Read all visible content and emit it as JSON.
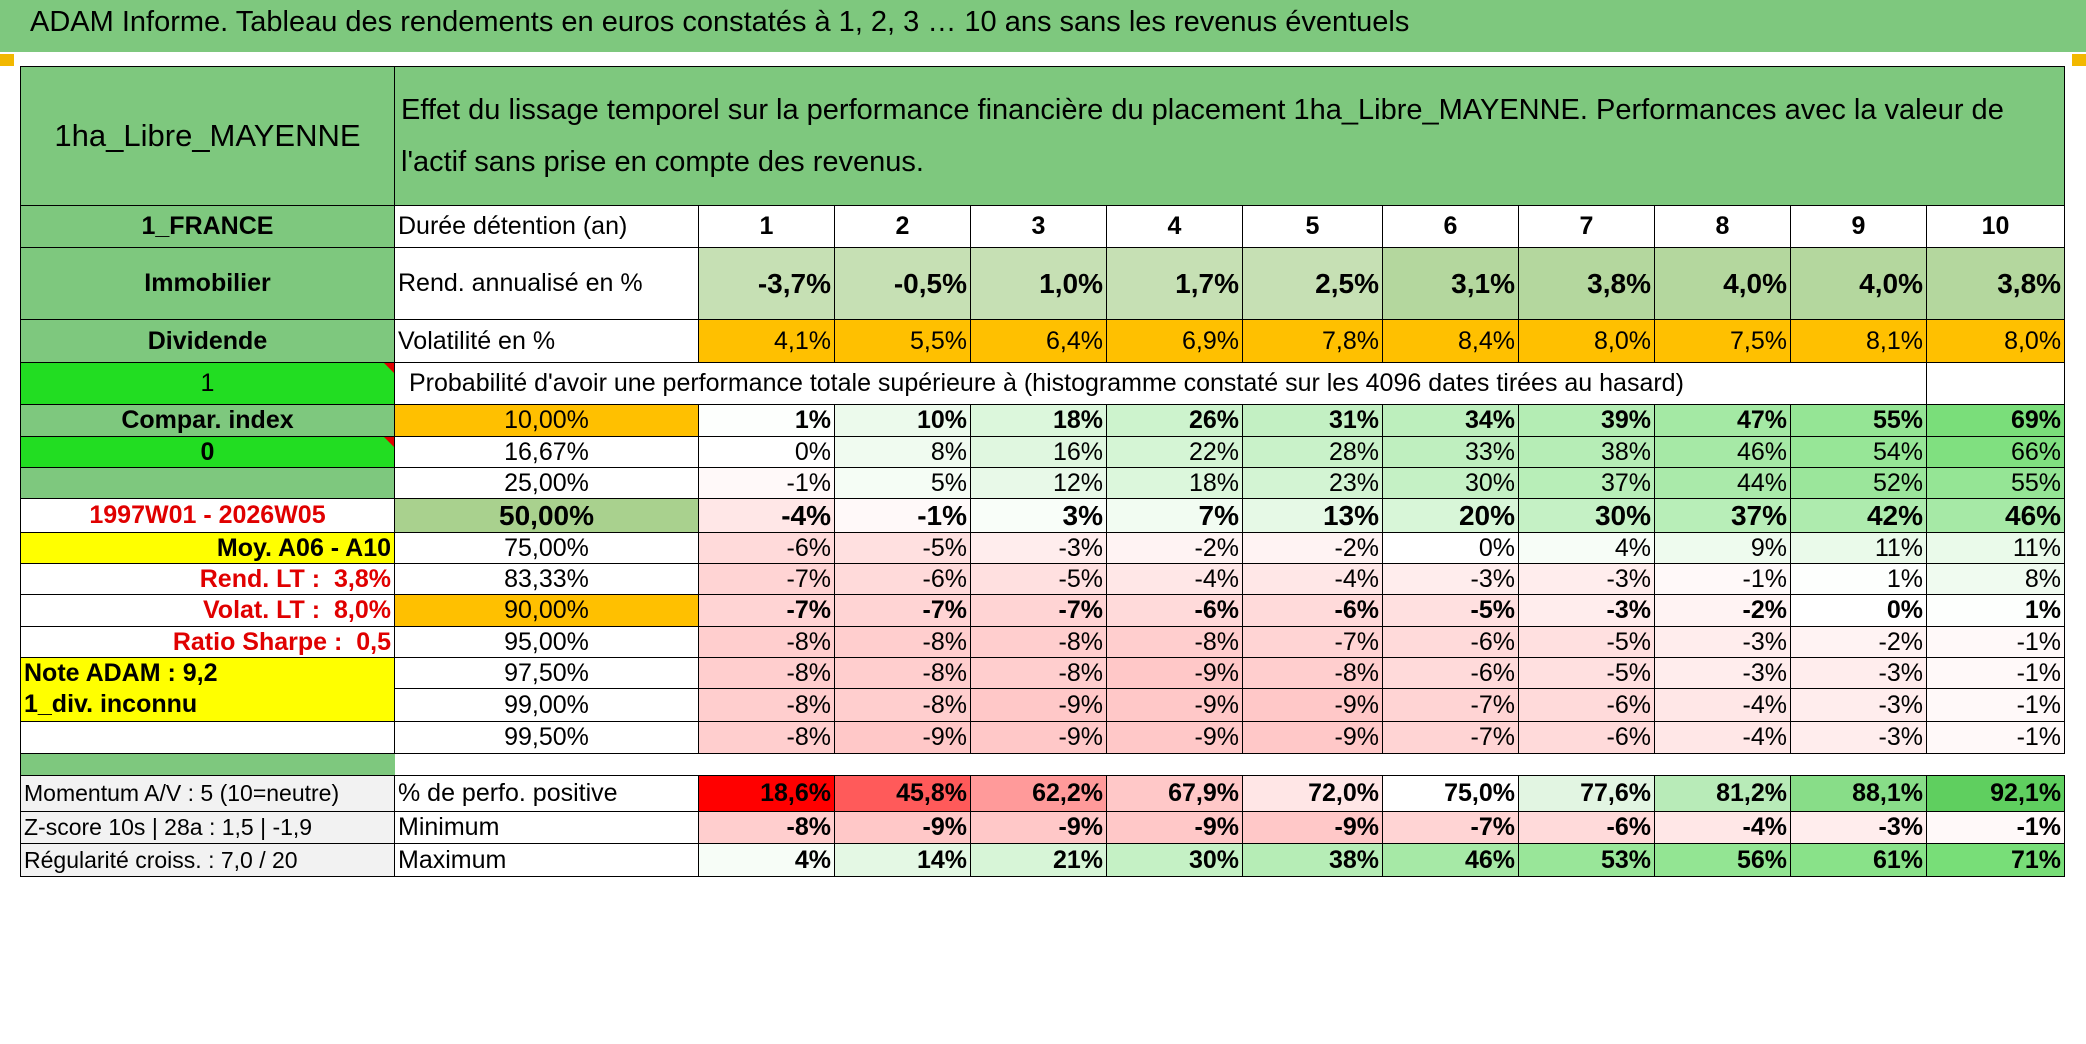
{
  "banner": {
    "title": "ADAM Informe. Tableau des rendements en euros constatés à 1, 2, 3 … 10 ans sans les revenus éventuels"
  },
  "header": {
    "asset_name": "1ha_Libre_MAYENNE",
    "description": "Effet du lissage temporel sur la performance financière du placement 1ha_Libre_MAYENNE. Performances avec la valeur de l'actif sans prise en compte des revenus."
  },
  "colors": {
    "banner": "#7ec87e",
    "header_green": "#7ec87e",
    "light_green": "#a9d18e",
    "bright_green": "#22dd22",
    "orange": "#ffc000",
    "yellow": "#ffff00",
    "red_text": "#e00000"
  },
  "durations": [
    "1",
    "2",
    "3",
    "4",
    "5",
    "6",
    "7",
    "8",
    "9",
    "10"
  ],
  "rows": {
    "duree": {
      "side": "1_FRANCE",
      "label": "Durée détention (an)"
    },
    "rend": {
      "side": "Immobilier",
      "label": "Rend. annualisé en %",
      "values": [
        "-3,7%",
        "-0,5%",
        "1,0%",
        "1,7%",
        "2,5%",
        "3,1%",
        "3,8%",
        "4,0%",
        "4,0%",
        "3,8%"
      ]
    },
    "vol": {
      "side": "Dividende",
      "label": "Volatilité en %",
      "values": [
        "4,1%",
        "5,5%",
        "6,4%",
        "6,9%",
        "7,8%",
        "8,4%",
        "8,0%",
        "7,5%",
        "8,1%",
        "8,0%"
      ]
    },
    "proba": {
      "side": "1",
      "label": "Probabilité d'avoir une performance totale supérieure à (histogramme constaté sur les 4096 dates tirées au hasard)"
    }
  },
  "percentiles": [
    {
      "side": "Compar. index",
      "pct": "10,00%",
      "values": [
        "1%",
        "10%",
        "18%",
        "26%",
        "31%",
        "34%",
        "39%",
        "47%",
        "55%",
        "69%"
      ]
    },
    {
      "side": "0",
      "pct": "16,67%",
      "values": [
        "0%",
        "8%",
        "16%",
        "22%",
        "28%",
        "33%",
        "38%",
        "46%",
        "54%",
        "66%"
      ]
    },
    {
      "side": "",
      "pct": "25,00%",
      "values": [
        "-1%",
        "5%",
        "12%",
        "18%",
        "23%",
        "30%",
        "37%",
        "44%",
        "52%",
        "55%"
      ]
    },
    {
      "side": "1997W01 - 2026W05",
      "pct": "50,00%",
      "values": [
        "-4%",
        "-1%",
        "3%",
        "7%",
        "13%",
        "20%",
        "30%",
        "37%",
        "42%",
        "46%"
      ]
    },
    {
      "side": "Moy. A06 - A10",
      "pct": "75,00%",
      "values": [
        "-6%",
        "-5%",
        "-3%",
        "-2%",
        "-2%",
        "0%",
        "4%",
        "9%",
        "11%",
        "11%"
      ]
    },
    {
      "side_label": "Rend. LT :",
      "side_value": "3,8%",
      "pct": "83,33%",
      "values": [
        "-7%",
        "-6%",
        "-5%",
        "-4%",
        "-4%",
        "-3%",
        "-3%",
        "-1%",
        "1%",
        "8%"
      ]
    },
    {
      "side_label": "Volat. LT :",
      "side_value": "8,0%",
      "pct": "90,00%",
      "values": [
        "-7%",
        "-7%",
        "-7%",
        "-6%",
        "-6%",
        "-5%",
        "-3%",
        "-2%",
        "0%",
        "1%"
      ]
    },
    {
      "side_label": "Ratio Sharpe :",
      "side_value": "0,5",
      "pct": "95,00%",
      "values": [
        "-8%",
        "-8%",
        "-8%",
        "-8%",
        "-7%",
        "-6%",
        "-5%",
        "-3%",
        "-2%",
        "-1%"
      ]
    },
    {
      "side": "Note ADAM : 9,2",
      "pct": "97,50%",
      "values": [
        "-8%",
        "-8%",
        "-8%",
        "-9%",
        "-8%",
        "-6%",
        "-5%",
        "-3%",
        "-3%",
        "-1%"
      ]
    },
    {
      "side": "1_div. inconnu",
      "pct": "99,00%",
      "values": [
        "-8%",
        "-8%",
        "-9%",
        "-9%",
        "-9%",
        "-7%",
        "-6%",
        "-4%",
        "-3%",
        "-1%"
      ]
    },
    {
      "side": "",
      "pct": "99,50%",
      "values": [
        "-8%",
        "-9%",
        "-9%",
        "-9%",
        "-9%",
        "-7%",
        "-6%",
        "-4%",
        "-3%",
        "-1%"
      ]
    }
  ],
  "stats": [
    {
      "side": "Momentum A/V : 5 (10=neutre)",
      "label": "% de perfo. positive",
      "values": [
        "18,6%",
        "45,8%",
        "62,2%",
        "67,9%",
        "72,0%",
        "75,0%",
        "77,6%",
        "81,2%",
        "88,1%",
        "92,1%"
      ]
    },
    {
      "side": "Z-score 10s | 28a : 1,5 | -1,9",
      "label": "Minimum",
      "values": [
        "-8%",
        "-9%",
        "-9%",
        "-9%",
        "-9%",
        "-7%",
        "-6%",
        "-4%",
        "-3%",
        "-1%"
      ]
    },
    {
      "side": "Régularité croiss. : 7,0 / 20",
      "label": "Maximum",
      "values": [
        "4%",
        "14%",
        "21%",
        "30%",
        "38%",
        "46%",
        "53%",
        "56%",
        "61%",
        "71%"
      ]
    }
  ]
}
